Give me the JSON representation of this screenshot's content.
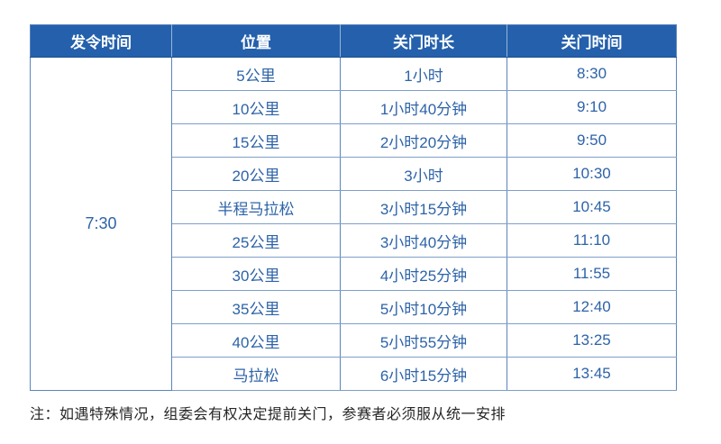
{
  "page": {
    "top_clipped_fragment": "··· ····",
    "bottom_clipped_fragment": "―― ―― ― ― ―― ― ― ― ―― ――"
  },
  "table": {
    "headers": {
      "start_time": "发令时间",
      "position": "位置",
      "duration": "关门时长",
      "close_time": "关门时间"
    },
    "start_time": "7:30",
    "rows": [
      {
        "position": "5公里",
        "duration": "1小时",
        "close_time": "8:30"
      },
      {
        "position": "10公里",
        "duration": "1小时40分钟",
        "close_time": "9:10"
      },
      {
        "position": "15公里",
        "duration": "2小时20分钟",
        "close_time": "9:50"
      },
      {
        "position": "20公里",
        "duration": "3小时",
        "close_time": "10:30"
      },
      {
        "position": "半程马拉松",
        "duration": "3小时15分钟",
        "close_time": "10:45"
      },
      {
        "position": "25公里",
        "duration": "3小时40分钟",
        "close_time": "11:10"
      },
      {
        "position": "30公里",
        "duration": "4小时25分钟",
        "close_time": "11:55"
      },
      {
        "position": "35公里",
        "duration": "5小时10分钟",
        "close_time": "12:40"
      },
      {
        "position": "40公里",
        "duration": "5小时55分钟",
        "close_time": "13:25"
      },
      {
        "position": "马拉松",
        "duration": "6小时15分钟",
        "close_time": "13:45"
      }
    ]
  },
  "note": "注：如遇特殊情况，组委会有权决定提前关门，参赛者必须服从统一安排",
  "colors": {
    "header_bg": "#2460ac",
    "header_text": "#ffffff",
    "cell_text": "#2d63a8",
    "border_vertical": "#5b84bb",
    "border_horizontal": "#7e9fca",
    "note_text": "#262626"
  }
}
